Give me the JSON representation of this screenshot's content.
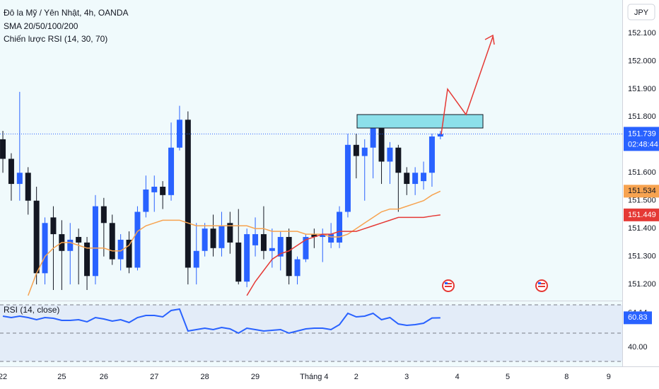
{
  "chart_data": [
    {
      "type": "candlestick",
      "title": "Đô la Mỹ / Yên Nhật, 4h, OANDA",
      "indicators": [
        "SMA 20/50/100/200",
        "Chiến lược RSI (14, 30, 70)"
      ],
      "currency": "JPY",
      "countdown": "02:48:44",
      "up_color": "#2962ff",
      "down_color": "#131722",
      "open": [
        151.72,
        151.65,
        151.56,
        151.6,
        151.5,
        151.24,
        151.44,
        151.38,
        151.32,
        151.37,
        151.35,
        151.23,
        151.48,
        151.42,
        151.29,
        151.36,
        151.26,
        151.46,
        151.53,
        151.55,
        151.52,
        151.69,
        151.79,
        151.26,
        151.32,
        151.4,
        151.33,
        151.42,
        151.35,
        151.21,
        151.34,
        151.38,
        151.32,
        151.3,
        151.37,
        151.23,
        151.29,
        151.38,
        151.37,
        151.35,
        151.35,
        151.46,
        151.7,
        151.66,
        151.69,
        151.76,
        151.64,
        151.69,
        151.6,
        151.56,
        151.57,
        151.6,
        151.73
      ],
      "high": [
        151.75,
        151.67,
        151.89,
        151.62,
        151.55,
        151.44,
        151.48,
        151.43,
        151.42,
        151.4,
        151.37,
        151.52,
        151.51,
        151.45,
        151.38,
        151.39,
        151.48,
        151.59,
        151.59,
        151.57,
        151.78,
        151.84,
        151.82,
        151.42,
        151.42,
        151.45,
        151.46,
        151.46,
        151.47,
        151.4,
        151.44,
        151.48,
        151.4,
        151.39,
        151.4,
        151.3,
        151.38,
        151.4,
        151.4,
        151.42,
        151.48,
        151.74,
        151.74,
        151.72,
        151.79,
        151.8,
        151.71,
        151.7,
        151.62,
        151.62,
        151.64,
        151.74,
        151.75
      ],
      "low": [
        151.6,
        151.5,
        151.5,
        151.45,
        151.2,
        151.2,
        151.18,
        151.18,
        151.2,
        151.2,
        151.18,
        151.2,
        151.3,
        151.27,
        151.25,
        151.24,
        151.25,
        151.44,
        151.46,
        151.47,
        151.5,
        151.68,
        151.2,
        151.2,
        151.3,
        151.3,
        151.3,
        151.31,
        151.2,
        151.19,
        151.3,
        151.29,
        151.26,
        151.25,
        151.2,
        151.2,
        151.28,
        151.33,
        151.28,
        151.33,
        151.33,
        151.44,
        151.58,
        151.5,
        151.58,
        151.56,
        151.56,
        151.46,
        151.52,
        151.52,
        151.54,
        151.55,
        151.72
      ],
      "close": [
        151.65,
        151.56,
        151.6,
        151.5,
        151.24,
        151.42,
        151.38,
        151.32,
        151.36,
        151.35,
        151.23,
        151.48,
        151.42,
        151.29,
        151.36,
        151.26,
        151.46,
        151.54,
        151.55,
        151.52,
        151.69,
        151.79,
        151.26,
        151.32,
        151.4,
        151.33,
        151.41,
        151.35,
        151.21,
        151.38,
        151.38,
        151.32,
        151.33,
        151.37,
        151.23,
        151.29,
        151.37,
        151.37,
        151.38,
        151.38,
        151.46,
        151.7,
        151.66,
        151.69,
        151.76,
        151.64,
        151.69,
        151.6,
        151.56,
        151.6,
        151.6,
        151.73,
        151.739
      ],
      "series": [
        {
          "color": "#f7a350",
          "values": [
            null,
            null,
            null,
            151.16,
            151.24,
            151.3,
            151.33,
            151.35,
            151.35,
            151.34,
            151.33,
            151.33,
            151.33,
            151.32,
            151.32,
            151.34,
            151.39,
            151.41,
            151.42,
            151.43,
            151.43,
            151.43,
            151.42,
            151.41,
            151.41,
            151.41,
            151.41,
            151.41,
            151.41,
            151.41,
            151.4,
            151.4,
            151.39,
            151.39,
            151.39,
            151.39,
            151.38,
            151.38,
            151.38,
            151.37,
            151.37,
            151.38,
            151.4,
            151.42,
            151.44,
            151.46,
            151.47,
            151.47,
            151.48,
            151.49,
            151.5,
            151.52,
            151.534
          ]
        },
        {
          "color": "#e53935",
          "values": [
            null,
            null,
            null,
            null,
            null,
            null,
            null,
            null,
            null,
            null,
            null,
            null,
            null,
            null,
            null,
            null,
            null,
            null,
            null,
            null,
            null,
            null,
            null,
            null,
            null,
            null,
            null,
            null,
            null,
            151.16,
            151.21,
            151.25,
            151.29,
            151.31,
            151.32,
            151.34,
            151.36,
            151.37,
            151.38,
            151.38,
            151.39,
            151.39,
            151.39,
            151.4,
            151.41,
            151.42,
            151.43,
            151.44,
            151.44,
            151.44,
            151.44,
            151.445,
            151.449
          ]
        }
      ],
      "xlim": [
        -0.34,
        73.61
      ],
      "xticks": [
        {
          "value": 0,
          "label": "22"
        },
        {
          "value": 7,
          "label": "25"
        },
        {
          "value": 12,
          "label": "26"
        },
        {
          "value": 18,
          "label": "27"
        },
        {
          "value": 24,
          "label": "28"
        },
        {
          "value": 30,
          "label": "29"
        },
        {
          "value": 37,
          "label": "Tháng 4"
        },
        {
          "value": 42,
          "label": "2"
        },
        {
          "value": 48,
          "label": "3"
        },
        {
          "value": 54,
          "label": "4"
        },
        {
          "value": 60,
          "label": "5"
        },
        {
          "value": 67,
          "label": "8"
        },
        {
          "value": 72,
          "label": "9"
        }
      ],
      "ylim": [
        151.142,
        152.219
      ],
      "yticks": [
        {
          "value": 151.2,
          "label": "151.200"
        },
        {
          "value": 151.3,
          "label": "151.300"
        },
        {
          "value": 151.4,
          "label": "151.400"
        },
        {
          "value": 151.5,
          "label": "151.500"
        },
        {
          "value": 151.6,
          "label": "151.600"
        },
        {
          "value": 151.7,
          "label": "151.700"
        },
        {
          "value": 151.8,
          "label": "151.800"
        },
        {
          "value": 151.9,
          "label": "151.900"
        },
        {
          "value": 152,
          "label": "152.000"
        },
        {
          "value": 152.1,
          "label": "152.100"
        }
      ]
    },
    {
      "type": "line",
      "title": "RSI (14, close)",
      "color": "#2962ff",
      "values": [
        62,
        61,
        62,
        61,
        59.5,
        61,
        60.5,
        59,
        59,
        59.5,
        58,
        61,
        60,
        58.5,
        59.5,
        57.5,
        61,
        62.5,
        62.5,
        61.5,
        66,
        67,
        51.5,
        52.5,
        53.5,
        52.5,
        54,
        53,
        50,
        53.5,
        52.5,
        51.5,
        52,
        52.5,
        50,
        51.5,
        53,
        53.5,
        53.5,
        52.5,
        56,
        64,
        61.5,
        62,
        64,
        59.5,
        61,
        56.5,
        55.5,
        56,
        57,
        60.7,
        60.83
      ],
      "levels": [
        70,
        50,
        30
      ],
      "ylim": [
        26.5,
        73
      ],
      "yticks": [
        {
          "value": 64.14,
          "label": "64.14"
        },
        {
          "value": 40,
          "label": "40.00"
        }
      ]
    }
  ]
}
